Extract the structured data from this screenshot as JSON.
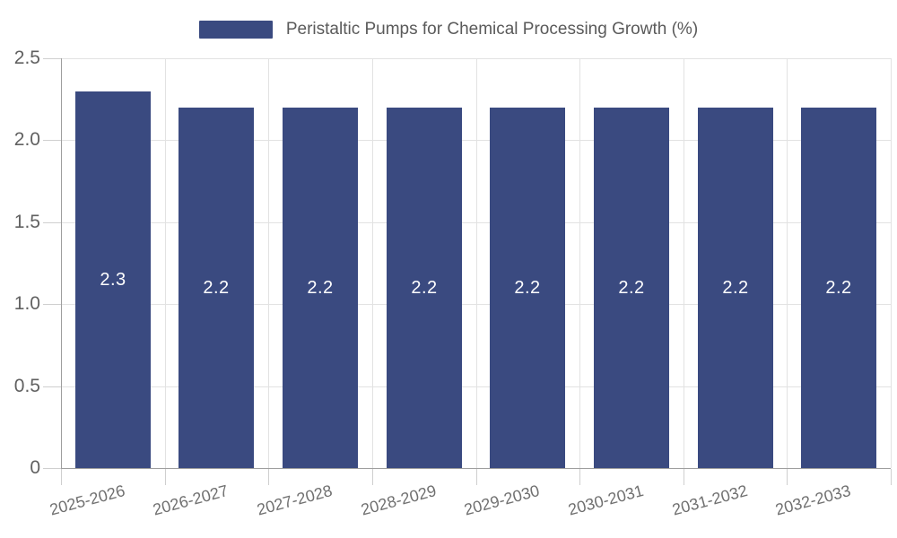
{
  "chart_data": {
    "type": "bar",
    "legend": {
      "label": "Peristaltic Pumps for Chemical Processing Growth (%)",
      "position": "top"
    },
    "categories": [
      "2025-2026",
      "2026-2027",
      "2027-2028",
      "2028-2029",
      "2029-2030",
      "2030-2031",
      "2031-2032",
      "2032-2033"
    ],
    "values": [
      2.3,
      2.2,
      2.2,
      2.2,
      2.2,
      2.2,
      2.2,
      2.2
    ],
    "value_labels": [
      "2.3",
      "2.2",
      "2.2",
      "2.2",
      "2.2",
      "2.2",
      "2.2",
      "2.2"
    ],
    "value_label_position": "inside-center",
    "xlabel": "",
    "ylabel": "",
    "ylim": [
      0,
      2.5
    ],
    "yticks": [
      0,
      0.5,
      1.0,
      1.5,
      2.0,
      2.5
    ],
    "ytick_labels": [
      "0",
      "0.5",
      "1.0",
      "1.5",
      "2.0",
      "2.5"
    ],
    "grid": true,
    "colors": {
      "bar": "#3A4A80",
      "grid": "#E2E2E2",
      "axis": "#9E9E9E",
      "tick": "#CFCFCF",
      "y_tick_label": "#616161",
      "x_tick_label": "#707070",
      "legend_text": "#5A5A5A",
      "bar_value_label": "#FFFFFF",
      "background": "#FFFFFF"
    }
  }
}
